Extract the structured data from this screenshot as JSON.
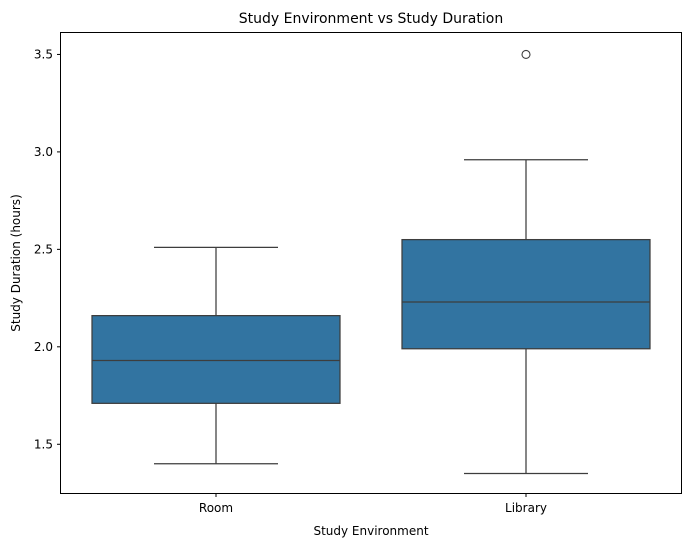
{
  "chart_data": {
    "type": "box",
    "title": "Study Environment vs Study Duration",
    "xlabel": "Study Environment",
    "ylabel": "Study Duration (hours)",
    "ylim": [
      1.25,
      3.61
    ],
    "yticks": [
      "1.5",
      "2.0",
      "2.5",
      "3.0",
      "3.5"
    ],
    "grid": false,
    "categories": [
      "Room",
      "Library"
    ],
    "boxes": [
      {
        "category": "Room",
        "whisker_low": 1.4,
        "q1": 1.71,
        "median": 1.93,
        "q3": 2.16,
        "whisker_high": 2.51,
        "outliers": []
      },
      {
        "category": "Library",
        "whisker_low": 1.35,
        "q1": 1.99,
        "median": 2.23,
        "q3": 2.55,
        "whisker_high": 2.96,
        "outliers": [
          3.5
        ]
      }
    ],
    "colors": {
      "box_fill": "#3274a1",
      "line": "#3d3d3d",
      "axis": "#000000"
    }
  }
}
